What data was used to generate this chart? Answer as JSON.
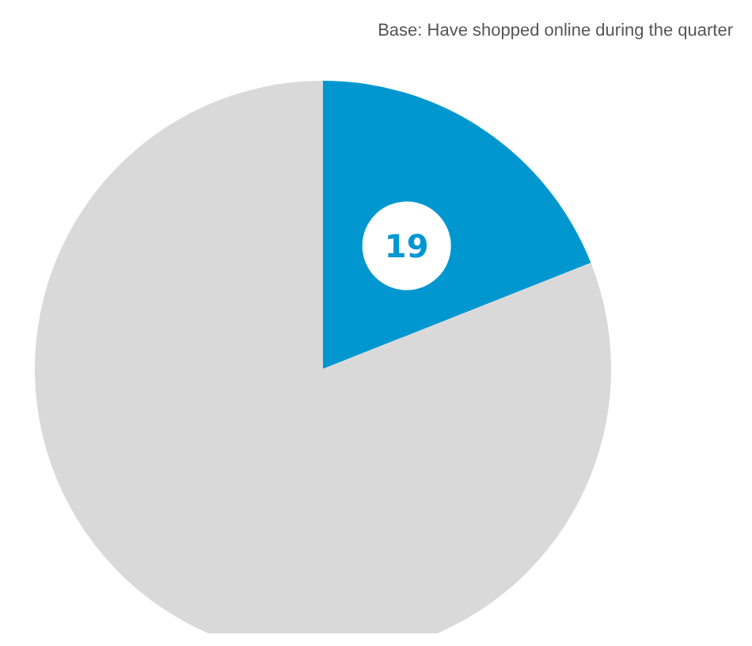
{
  "chart_data": {
    "type": "pie",
    "categories": [
      null,
      null
    ],
    "values": [
      19,
      81
    ],
    "colors": [
      "#0097d0",
      "#d9d9d9"
    ],
    "value_labels": [
      "19",
      null
    ],
    "annotations": [
      "Base: Have shopped online during the quarter"
    ]
  }
}
